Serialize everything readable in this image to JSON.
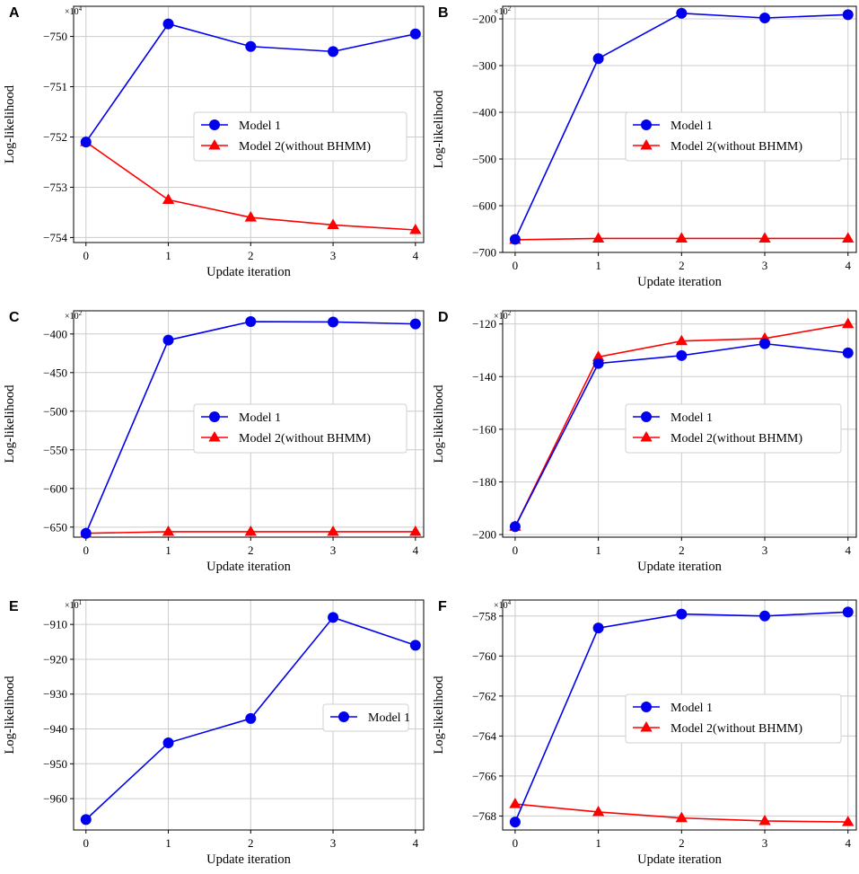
{
  "figure": {
    "colors": {
      "model1": "#0000ee",
      "model2": "#ff0000",
      "grid": "#cccccc",
      "axis": "#000000"
    }
  },
  "chart_data": [
    {
      "panel": "A",
      "type": "line",
      "title": "",
      "xlabel": "Update iteration",
      "ylabel": "Log-likelihood",
      "y_multiplier_base": "×10",
      "y_multiplier_exp": "4",
      "x": [
        0,
        1,
        2,
        3,
        4
      ],
      "xlim": [
        -0.15,
        4.1
      ],
      "ylim": [
        -754.1,
        -749.4
      ],
      "yticks": [
        -754,
        -753,
        -752,
        -751,
        -750
      ],
      "grid": true,
      "legend": "center-right",
      "series": [
        {
          "name": "Model 1",
          "marker": "circle",
          "color": "#0000ee",
          "values": [
            -752.1,
            -749.75,
            -750.2,
            -750.3,
            -749.95
          ]
        },
        {
          "name": "Model 2(without BHMM)",
          "marker": "triangle",
          "color": "#ff0000",
          "values": [
            -752.1,
            -753.25,
            -753.6,
            -753.75,
            -753.85
          ]
        }
      ]
    },
    {
      "panel": "B",
      "type": "line",
      "title": "",
      "xlabel": "Update iteration",
      "ylabel": "Log-likelihood",
      "y_multiplier_base": "×10",
      "y_multiplier_exp": "2",
      "x": [
        0,
        1,
        2,
        3,
        4
      ],
      "xlim": [
        -0.15,
        4.1
      ],
      "ylim": [
        -700,
        -173
      ],
      "yticks": [
        -700,
        -600,
        -500,
        -400,
        -300,
        -200
      ],
      "grid": true,
      "legend": "center-right",
      "series": [
        {
          "name": "Model 1",
          "marker": "circle",
          "color": "#0000ee",
          "values": [
            -672,
            -285,
            -188,
            -198,
            -191
          ]
        },
        {
          "name": "Model 2(without BHMM)",
          "marker": "triangle",
          "color": "#ff0000",
          "values": [
            -673,
            -670,
            -670,
            -670,
            -670
          ]
        }
      ]
    },
    {
      "panel": "C",
      "type": "line",
      "title": "",
      "xlabel": "Update iteration",
      "ylabel": "Log-likelihood",
      "y_multiplier_base": "×10",
      "y_multiplier_exp": "2",
      "x": [
        0,
        1,
        2,
        3,
        4
      ],
      "xlim": [
        -0.15,
        4.1
      ],
      "ylim": [
        -663,
        -370
      ],
      "yticks": [
        -650,
        -600,
        -550,
        -500,
        -450,
        -400
      ],
      "grid": true,
      "legend": "center-right",
      "series": [
        {
          "name": "Model 1",
          "marker": "circle",
          "color": "#0000ee",
          "values": [
            -658,
            -408,
            -384,
            -384.5,
            -387
          ]
        },
        {
          "name": "Model 2(without BHMM)",
          "marker": "triangle",
          "color": "#ff0000",
          "values": [
            -658,
            -656,
            -656,
            -656,
            -656
          ]
        }
      ]
    },
    {
      "panel": "D",
      "type": "line",
      "title": "",
      "xlabel": "Update iteration",
      "ylabel": "Log-likelihood",
      "y_multiplier_base": "×10",
      "y_multiplier_exp": "2",
      "x": [
        0,
        1,
        2,
        3,
        4
      ],
      "xlim": [
        -0.15,
        4.1
      ],
      "ylim": [
        -201,
        -115
      ],
      "yticks": [
        -200,
        -180,
        -160,
        -140,
        -120
      ],
      "grid": true,
      "legend": "center-right",
      "series": [
        {
          "name": "Model 1",
          "marker": "circle",
          "color": "#0000ee",
          "values": [
            -197,
            -135,
            -132,
            -127.5,
            -131
          ]
        },
        {
          "name": "Model 2(without BHMM)",
          "marker": "triangle",
          "color": "#ff0000",
          "values": [
            -197,
            -132.5,
            -126.5,
            -125.5,
            -120
          ]
        }
      ]
    },
    {
      "panel": "E",
      "type": "line",
      "title": "",
      "xlabel": "Update iteration",
      "ylabel": "Log-likelihood",
      "y_multiplier_base": "×10",
      "y_multiplier_exp": "1",
      "x": [
        0,
        1,
        2,
        3,
        4
      ],
      "xlim": [
        -0.15,
        4.1
      ],
      "ylim": [
        -969,
        -903
      ],
      "yticks": [
        -960,
        -950,
        -940,
        -930,
        -920,
        -910
      ],
      "grid": true,
      "legend": "center-right",
      "series": [
        {
          "name": "Model 1",
          "marker": "circle",
          "color": "#0000ee",
          "values": [
            -966,
            -944,
            -937,
            -908,
            -916
          ]
        }
      ]
    },
    {
      "panel": "F",
      "type": "line",
      "title": "",
      "xlabel": "Update iteration",
      "ylabel": "Log-likelihood",
      "y_multiplier_base": "×10",
      "y_multiplier_exp": "4",
      "x": [
        0,
        1,
        2,
        3,
        4
      ],
      "xlim": [
        -0.15,
        4.1
      ],
      "ylim": [
        -768.7,
        -757.2
      ],
      "yticks": [
        -768,
        -766,
        -764,
        -762,
        -760,
        -758
      ],
      "grid": true,
      "legend": "center-right",
      "series": [
        {
          "name": "Model 1",
          "marker": "circle",
          "color": "#0000ee",
          "values": [
            -768.3,
            -758.6,
            -757.9,
            -758.0,
            -757.8
          ]
        },
        {
          "name": "Model 2(without BHMM)",
          "marker": "triangle",
          "color": "#ff0000",
          "values": [
            -767.4,
            -767.8,
            -768.1,
            -768.25,
            -768.3
          ]
        }
      ]
    }
  ]
}
